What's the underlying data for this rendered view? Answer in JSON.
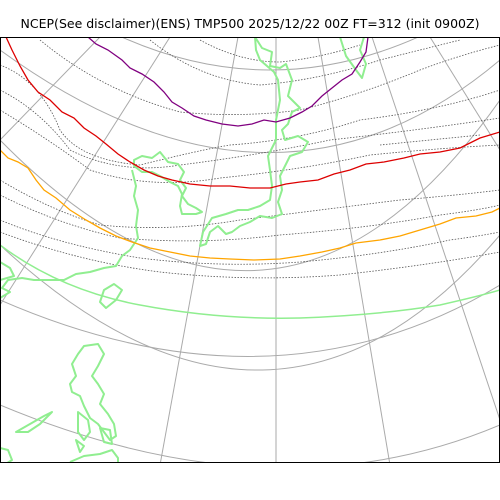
{
  "title": "NCEP(See disclaimer)(ENS) TMP500 2025/12/22 00Z FT=312 (init 0900Z)",
  "colors": {
    "background": "#ffffff",
    "frame": "#000000",
    "graticule": "#aaaaaa",
    "contour": "#555555",
    "coastline": "#90ee90",
    "isotherm_warm": "#ffa500",
    "isotherm_mid": "#dd0000",
    "isotherm_cold": "#800080"
  }
}
